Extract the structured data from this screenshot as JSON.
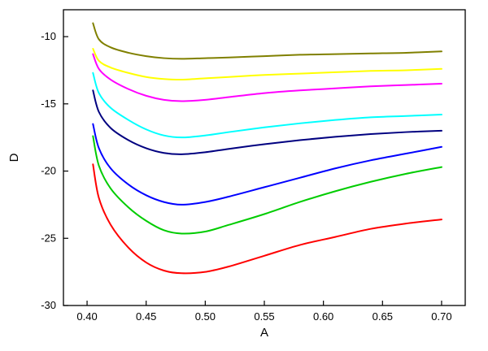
{
  "figure": {
    "background_color": "#ffffff",
    "frame_color": "#000000"
  },
  "chart_data": {
    "type": "line",
    "title": "",
    "xlabel": "A",
    "ylabel": "D",
    "xlim": [
      0.38,
      0.72
    ],
    "ylim": [
      -30,
      -8
    ],
    "grid": false,
    "legend": "none",
    "xtick_values": [
      0.4,
      0.45,
      0.5,
      0.55,
      0.6,
      0.65,
      0.7
    ],
    "xtick_labels": [
      "0.40",
      "0.45",
      "0.50",
      "0.55",
      "0.60",
      "0.65",
      "0.70"
    ],
    "ytick_values": [
      -10,
      -15,
      -20,
      -25,
      -30
    ],
    "ytick_labels": [
      "-10",
      "-15",
      "-20",
      "-25",
      "-30"
    ],
    "x": [
      0.405,
      0.41,
      0.42,
      0.435,
      0.45,
      0.465,
      0.48,
      0.5,
      0.52,
      0.55,
      0.58,
      0.61,
      0.64,
      0.67,
      0.7
    ],
    "series": [
      {
        "name": "curve-dark-yellow",
        "color": "#808000",
        "y": [
          -9.0,
          -10.2,
          -10.8,
          -11.2,
          -11.45,
          -11.6,
          -11.65,
          -11.6,
          -11.55,
          -11.45,
          -11.35,
          -11.3,
          -11.25,
          -11.2,
          -11.1
        ]
      },
      {
        "name": "curve-yellow",
        "color": "#FFFF00",
        "y": [
          -10.9,
          -11.8,
          -12.3,
          -12.7,
          -13.0,
          -13.15,
          -13.2,
          -13.1,
          -13.0,
          -12.85,
          -12.75,
          -12.65,
          -12.55,
          -12.5,
          -12.4
        ]
      },
      {
        "name": "curve-magenta",
        "color": "#FF00FF",
        "y": [
          -11.3,
          -12.4,
          -13.2,
          -13.9,
          -14.4,
          -14.7,
          -14.8,
          -14.7,
          -14.5,
          -14.2,
          -14.0,
          -13.85,
          -13.7,
          -13.6,
          -13.5
        ]
      },
      {
        "name": "curve-cyan",
        "color": "#00FFFF",
        "y": [
          -12.7,
          -14.2,
          -15.3,
          -16.2,
          -16.9,
          -17.35,
          -17.5,
          -17.35,
          -17.1,
          -16.75,
          -16.45,
          -16.2,
          -16.0,
          -15.9,
          -15.8
        ]
      },
      {
        "name": "curve-navy",
        "color": "#000080",
        "y": [
          -14.0,
          -15.6,
          -16.8,
          -17.7,
          -18.3,
          -18.65,
          -18.75,
          -18.6,
          -18.35,
          -18.0,
          -17.7,
          -17.45,
          -17.25,
          -17.1,
          -17.0
        ]
      },
      {
        "name": "curve-blue",
        "color": "#0000FF",
        "y": [
          -16.5,
          -18.3,
          -19.8,
          -21.0,
          -21.8,
          -22.3,
          -22.5,
          -22.3,
          -21.9,
          -21.2,
          -20.5,
          -19.8,
          -19.2,
          -18.7,
          -18.2
        ]
      },
      {
        "name": "curve-green",
        "color": "#00CC00",
        "y": [
          -17.4,
          -19.6,
          -21.3,
          -22.7,
          -23.7,
          -24.4,
          -24.65,
          -24.5,
          -24.0,
          -23.2,
          -22.3,
          -21.5,
          -20.8,
          -20.2,
          -19.7
        ]
      },
      {
        "name": "curve-red",
        "color": "#FF0000",
        "y": [
          -19.5,
          -22.0,
          -24.0,
          -25.7,
          -26.8,
          -27.4,
          -27.6,
          -27.5,
          -27.1,
          -26.3,
          -25.5,
          -24.9,
          -24.3,
          -23.9,
          -23.6
        ]
      }
    ]
  }
}
